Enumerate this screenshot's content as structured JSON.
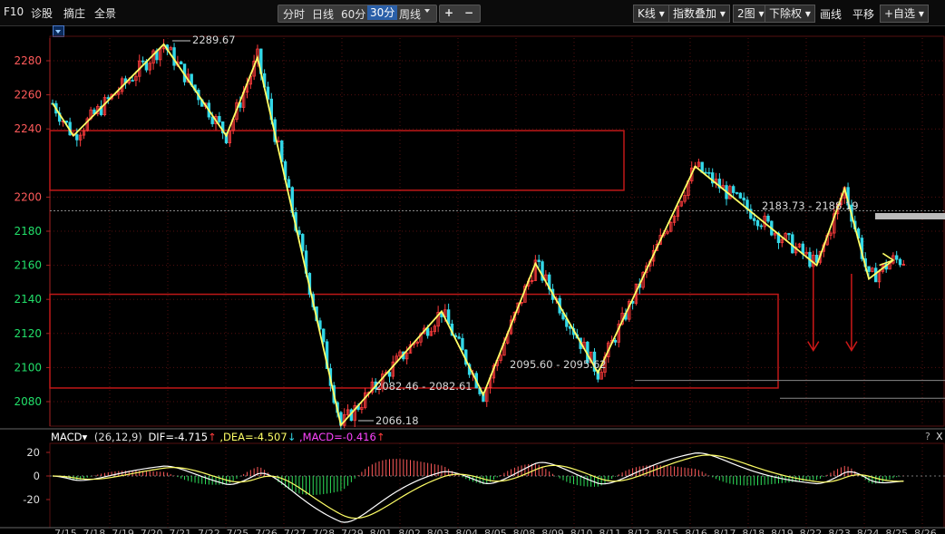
{
  "toolbar": {
    "left_items": [
      "F10",
      "诊股",
      "摘庄",
      "全景"
    ],
    "periods": [
      "分时",
      "日线",
      "60分",
      "30分",
      "周线"
    ],
    "selected_period": "30分",
    "zoom_in": "+",
    "zoom_out": "−",
    "right": {
      "kline": "K线",
      "index_overlay": "指数叠加",
      "two_charts": "2图",
      "adjust": "下除权",
      "draw": "画线",
      "pan": "平移",
      "watchlist": "+自选"
    }
  },
  "main_chart": {
    "y_ticks": [
      2280,
      2260,
      2240,
      2200,
      2180,
      2160,
      2140,
      2120,
      2100,
      2080
    ],
    "annotations": [
      "2289.67",
      "2066.18",
      "2082.46 - 2082.61",
      "2095.60 - 2095.62",
      "2183.73 - 2188.19"
    ],
    "reference_level": 2192
  },
  "macd": {
    "label": "MACD",
    "params": "(26,12,9)",
    "dif": "DIF=-4.715",
    "dea": "DEA=-4.507",
    "macd": "MACD=-0.416",
    "y_ticks": [
      "20",
      "0",
      "-20"
    ],
    "help": "?",
    "close": "X"
  },
  "x_labels": [
    "7/15",
    "7/18",
    "7/19",
    "7/20",
    "7/21",
    "7/22",
    "7/25",
    "7/26",
    "7/27",
    "7/28",
    "7/29",
    "8/01",
    "8/02",
    "8/03",
    "8/04",
    "8/05",
    "8/08",
    "8/09",
    "8/10",
    "8/11",
    "8/12",
    "8/15",
    "8/16",
    "8/17",
    "8/18",
    "8/19",
    "8/22",
    "8/23",
    "8/24",
    "8/25",
    "8/26"
  ],
  "colors": {
    "up": "#ff3c3c",
    "down": "#33d8e8",
    "zigzag": "#ffff66",
    "box": "#c01818",
    "grid": "#551111"
  },
  "chart_data": {
    "type": "candlestick",
    "period": "30分",
    "ylim": [
      2065,
      2295
    ],
    "zigzag": [
      {
        "x": 0,
        "y": 2255
      },
      {
        "x": 6,
        "y": 2236
      },
      {
        "x": 32,
        "y": 2289.67
      },
      {
        "x": 50,
        "y": 2236
      },
      {
        "x": 59,
        "y": 2282
      },
      {
        "x": 83,
        "y": 2066.18
      },
      {
        "x": 112,
        "y": 2133
      },
      {
        "x": 124,
        "y": 2084
      },
      {
        "x": 139,
        "y": 2161
      },
      {
        "x": 157,
        "y": 2097
      },
      {
        "x": 185,
        "y": 2218
      },
      {
        "x": 220,
        "y": 2160
      },
      {
        "x": 228,
        "y": 2205
      },
      {
        "x": 235,
        "y": 2152
      },
      {
        "x": 242,
        "y": 2163
      }
    ],
    "boxes": [
      {
        "x0": 0,
        "x1": 153,
        "y0": 2204,
        "y1": 2239
      },
      {
        "x0": 0,
        "x1": 193,
        "y0": 2088,
        "y1": 2143
      }
    ],
    "hlines": [
      2192,
      2095.6
    ],
    "arrows": [
      {
        "x": 219,
        "y_from": 2160,
        "y_to": 2110
      },
      {
        "x": 230,
        "y_from": 2155,
        "y_to": 2110
      }
    ]
  }
}
